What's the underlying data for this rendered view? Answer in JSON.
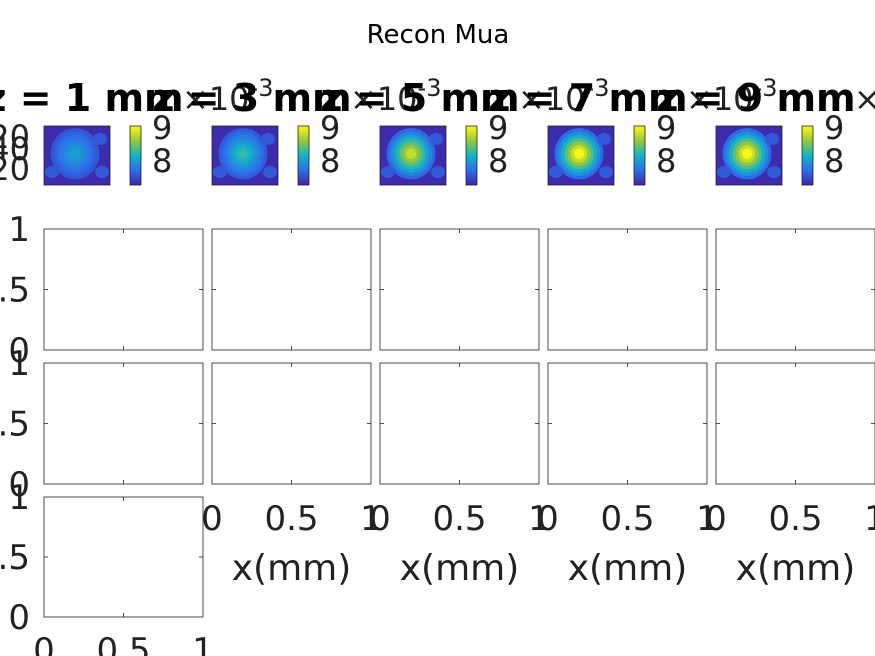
{
  "figure": {
    "title": "Recon Mua"
  },
  "chart_data": [
    {
      "type": "heatmap",
      "title": "z = 1 mm",
      "colorbar": {
        "exponent_label": "×10",
        "exponent": "-3",
        "ticks": [
          "9",
          "8"
        ]
      },
      "yticks": [
        "20",
        "40",
        "20"
      ],
      "peak_level": 0.35
    },
    {
      "type": "heatmap",
      "title": "z = 3 mm",
      "colorbar": {
        "exponent_label": "×10",
        "exponent": "-3",
        "ticks": [
          "9",
          "8"
        ]
      },
      "peak_level": 0.5
    },
    {
      "type": "heatmap",
      "title": "z = 5 mm",
      "colorbar": {
        "exponent_label": "×10",
        "exponent": "-3",
        "ticks": [
          "9",
          "8"
        ]
      },
      "peak_level": 0.85
    },
    {
      "type": "heatmap",
      "title": "z = 7 mm",
      "colorbar": {
        "exponent_label": "×10",
        "exponent": "-3",
        "ticks": [
          "9",
          "8"
        ]
      },
      "peak_level": 1.0
    },
    {
      "type": "heatmap",
      "title": "z = 9 mm",
      "colorbar": {
        "exponent_label": "×10",
        "exponent": "-3",
        "ticks": [
          "9",
          "8"
        ]
      },
      "peak_level": 1.0
    }
  ],
  "empty_axes": {
    "xlim": [
      0,
      1
    ],
    "ylim": [
      0,
      1
    ],
    "xticks": [
      "0",
      "0.5",
      "1"
    ],
    "yticks": [
      "0",
      ".5",
      "1"
    ],
    "xlabel": "x(mm)"
  }
}
